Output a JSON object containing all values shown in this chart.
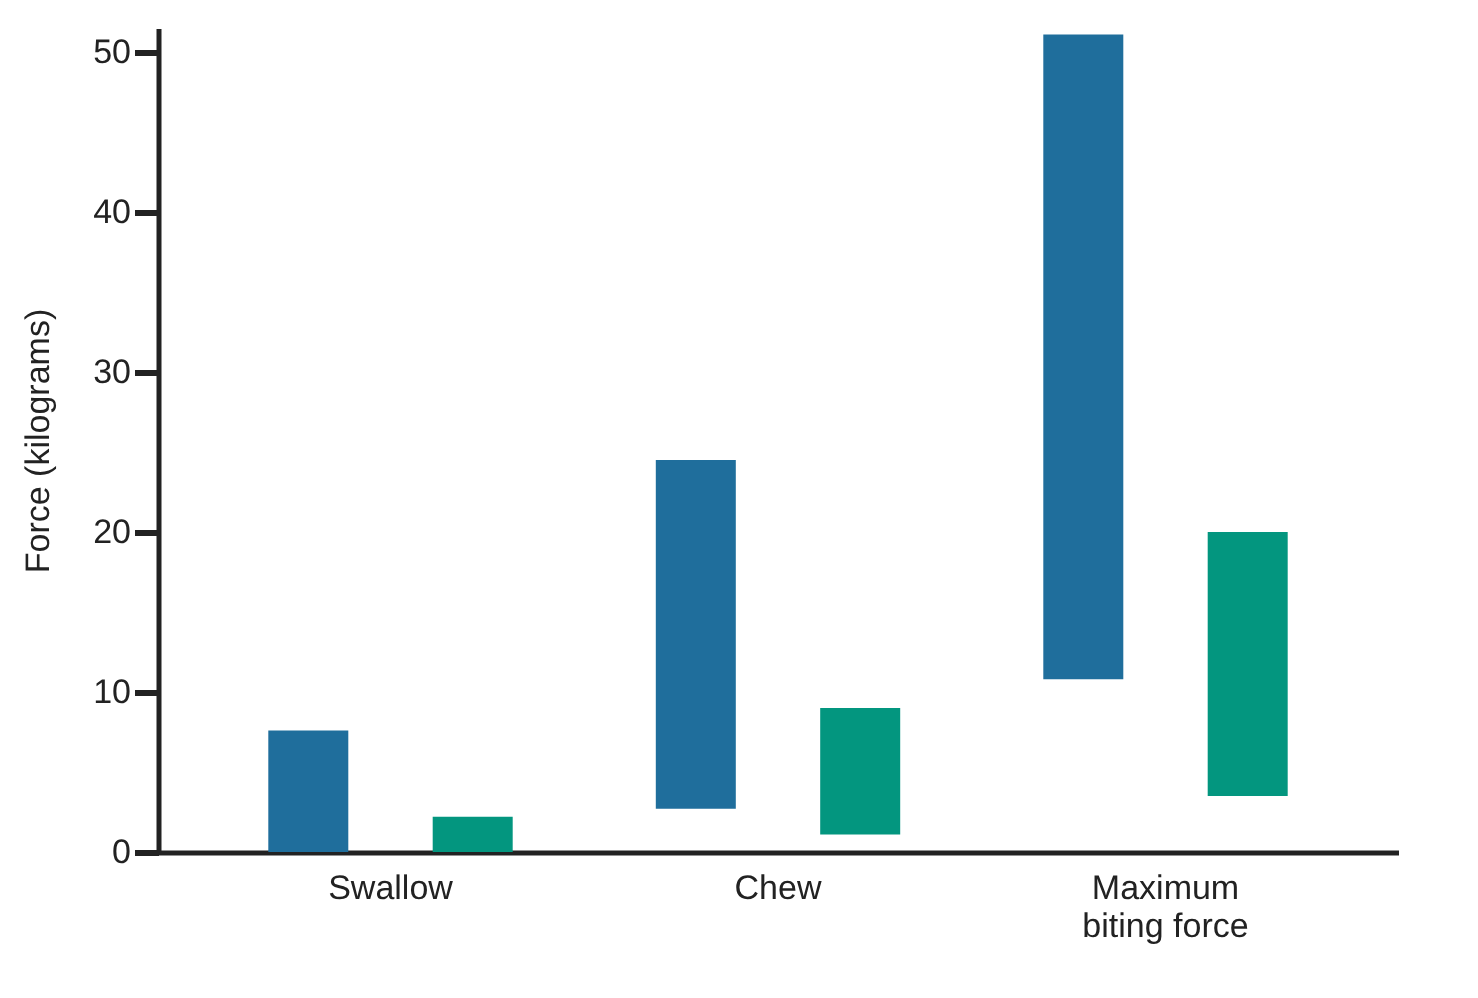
{
  "chart_data": {
    "type": "bar",
    "ylabel": "Force (kilograms)",
    "categories": [
      "Swallow",
      "Chew",
      "Maximum biting force"
    ],
    "series": [
      {
        "color": "#1f6e9c",
        "base": [
          0,
          2.7,
          10.8
        ],
        "values": [
          7.6,
          21.8,
          40.3
        ]
      },
      {
        "color": "#03967f",
        "base": [
          0,
          1.1,
          3.5
        ],
        "values": [
          2.2,
          7.9,
          16.5
        ]
      }
    ],
    "ylim": [
      0,
      51.5
    ],
    "yticks": [
      0,
      10,
      20,
      30,
      40,
      50
    ],
    "grid": false,
    "legend": false
  }
}
